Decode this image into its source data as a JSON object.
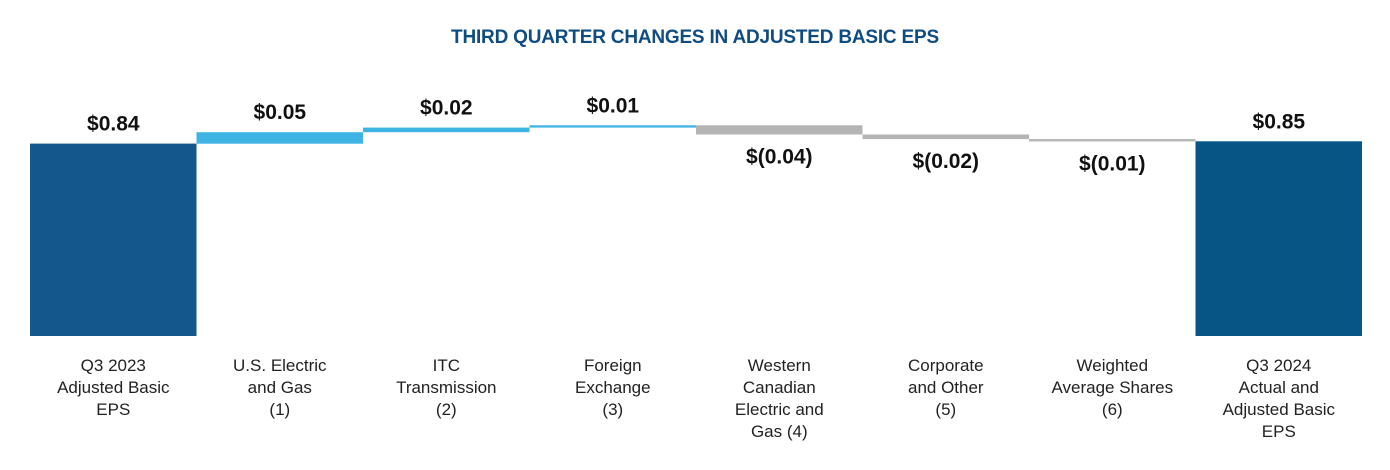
{
  "chart_data": {
    "type": "bar",
    "subtype": "waterfall",
    "title": "THIRD QUARTER CHANGES IN ADJUSTED BASIC EPS",
    "xlabel": "",
    "ylabel": "",
    "grid": false,
    "legend": "none",
    "categories": [
      [
        "Q3 2023",
        "Adjusted Basic",
        "EPS"
      ],
      [
        "U.S. Electric",
        "and Gas",
        "(1)"
      ],
      [
        "ITC",
        "Transmission",
        "(2)"
      ],
      [
        "Foreign",
        "Exchange",
        "(3)"
      ],
      [
        "Western",
        "Canadian",
        "Electric and",
        "Gas (4)"
      ],
      [
        "Corporate",
        "and Other",
        "(5)"
      ],
      [
        "Weighted",
        "Average Shares",
        "(6)"
      ],
      [
        "Q3 2024",
        "Actual and",
        "Adjusted Basic",
        "EPS"
      ]
    ],
    "values": [
      0.84,
      0.05,
      0.02,
      0.01,
      -0.04,
      -0.02,
      -0.01,
      0.85
    ],
    "kinds": [
      "total",
      "delta",
      "delta",
      "delta",
      "delta",
      "delta",
      "delta",
      "total"
    ],
    "labels": [
      "$0.84",
      "$0.05",
      "$0.02",
      "$0.01",
      "$(0.04)",
      "$(0.02)",
      "$(0.01)",
      "$0.85"
    ],
    "colors": {
      "start_total": "#14578c",
      "end_total": "#065585",
      "increase": "#3fb3e3",
      "decrease": "#b4b4b4",
      "title": "#0f4c81",
      "value_text": "#111111",
      "category_text": "#222222"
    }
  }
}
